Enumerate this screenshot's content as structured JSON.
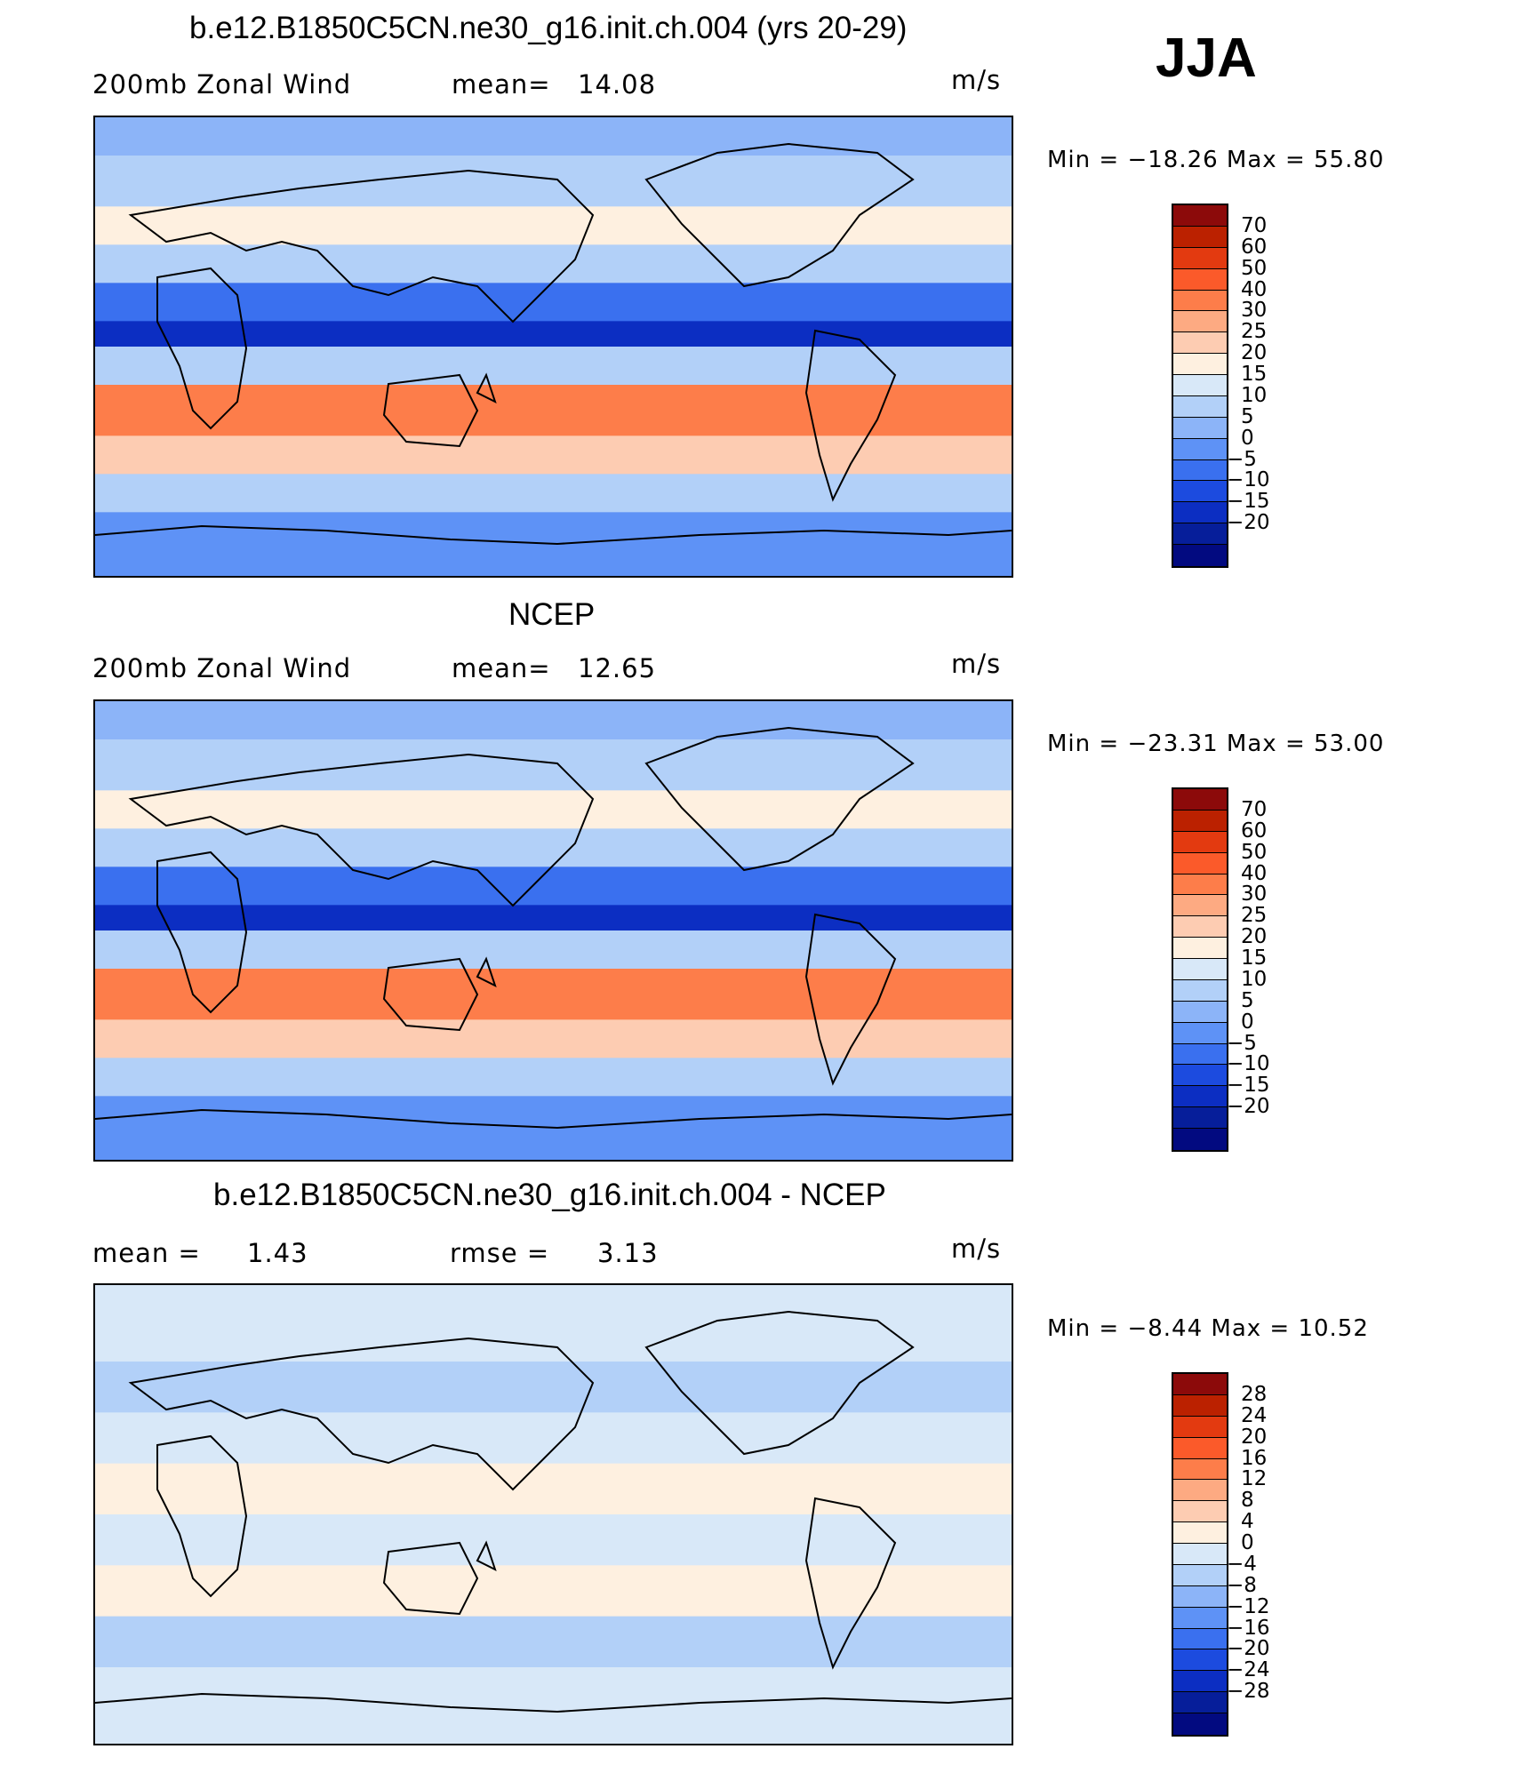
{
  "season": "JJA",
  "panels": [
    {
      "title": "b.e12.B1850C5CN.ne30_g16.init.ch.004 (yrs 20-29)",
      "left_text": "200mb  Zonal Wind",
      "stat1_label": "mean=",
      "stat1_value": "14.08",
      "stat2_label": "",
      "stat2_value": "",
      "units": "m/s",
      "minmax": "Min  =  −18.26  Max  =    55.80",
      "colorbar": {
        "colors": [
          "#8c0a0a",
          "#bb2100",
          "#e33a10",
          "#fb5a2a",
          "#fd7d4a",
          "#fdaa82",
          "#fdccb2",
          "#fef0e0",
          "#d8e8f8",
          "#b2d0f8",
          "#8cb4f8",
          "#5e92f6",
          "#3a70ef",
          "#1c4bdf",
          "#0c2ec2",
          "#061e9a",
          "#020a80"
        ],
        "labels": [
          "70",
          "60",
          "50",
          "40",
          "30",
          "25",
          "20",
          "15",
          "10",
          "5",
          "0",
          "−5",
          "−10",
          "−15",
          "−20"
        ]
      }
    },
    {
      "title": "NCEP",
      "left_text": "200mb  Zonal Wind",
      "stat1_label": "mean=",
      "stat1_value": "12.65",
      "stat2_label": "",
      "stat2_value": "",
      "units": "m/s",
      "minmax": "Min  =  −23.31  Max  =    53.00",
      "colorbar": {
        "colors": [
          "#8c0a0a",
          "#bb2100",
          "#e33a10",
          "#fb5a2a",
          "#fd7d4a",
          "#fdaa82",
          "#fdccb2",
          "#fef0e0",
          "#d8e8f8",
          "#b2d0f8",
          "#8cb4f8",
          "#5e92f6",
          "#3a70ef",
          "#1c4bdf",
          "#0c2ec2",
          "#061e9a",
          "#020a80"
        ],
        "labels": [
          "70",
          "60",
          "50",
          "40",
          "30",
          "25",
          "20",
          "15",
          "10",
          "5",
          "0",
          "−5",
          "−10",
          "−15",
          "−20"
        ]
      }
    },
    {
      "title": "b.e12.B1850C5CN.ne30_g16.init.ch.004 - NCEP",
      "left_text": "mean  =",
      "stat1_label": "",
      "stat1_value": "1.43",
      "stat2_label": "rmse  =",
      "stat2_value": "3.13",
      "units": "m/s",
      "minmax": "Min  =    −8.44  Max  =    10.52",
      "colorbar": {
        "colors": [
          "#8c0a0a",
          "#bb2100",
          "#e33a10",
          "#fb5a2a",
          "#fd7d4a",
          "#fdaa82",
          "#fdccb2",
          "#fef0e0",
          "#d8e8f8",
          "#b2d0f8",
          "#8cb4f8",
          "#5e92f6",
          "#3a70ef",
          "#1c4bdf",
          "#0c2ec2",
          "#061e9a",
          "#020a80"
        ],
        "labels": [
          "28",
          "24",
          "20",
          "16",
          "12",
          "8",
          "4",
          "0",
          "−4",
          "−8",
          "−12",
          "−16",
          "−20",
          "−24",
          "−28"
        ]
      }
    }
  ],
  "chart_data": [
    {
      "type": "heatmap",
      "title": "b.e12.B1850C5CN.ne30_g16.init.ch.004 (yrs 20-29)",
      "variable": "200mb  Zonal Wind",
      "units": "m/s",
      "mean": 14.08,
      "min": -18.26,
      "max": 55.8,
      "contour_levels": [
        -20,
        -15,
        -10,
        -5,
        0,
        5,
        10,
        15,
        20,
        25,
        30,
        40,
        50,
        60,
        70
      ],
      "zonal_bands": [
        {
          "lat_range": [
            75,
            90
          ],
          "value": 5
        },
        {
          "lat_range": [
            55,
            75
          ],
          "value": 10
        },
        {
          "lat_range": [
            40,
            55
          ],
          "value": 20
        },
        {
          "lat_range": [
            25,
            40
          ],
          "value": 10
        },
        {
          "lat_range": [
            10,
            25
          ],
          "value": -5
        },
        {
          "lat_range": [
            0,
            10
          ],
          "value": -12
        },
        {
          "lat_range": [
            -15,
            0
          ],
          "value": 10
        },
        {
          "lat_range": [
            -35,
            -15
          ],
          "value": 40
        },
        {
          "lat_range": [
            -50,
            -35
          ],
          "value": 25
        },
        {
          "lat_range": [
            -65,
            -50
          ],
          "value": 10
        },
        {
          "lat_range": [
            -90,
            -65
          ],
          "value": 0
        }
      ]
    },
    {
      "type": "heatmap",
      "title": "NCEP",
      "variable": "200mb  Zonal Wind",
      "units": "m/s",
      "mean": 12.65,
      "min": -23.31,
      "max": 53.0,
      "contour_levels": [
        -20,
        -15,
        -10,
        -5,
        0,
        5,
        10,
        15,
        20,
        25,
        30,
        40,
        50,
        60,
        70
      ],
      "zonal_bands": [
        {
          "lat_range": [
            75,
            90
          ],
          "value": 5
        },
        {
          "lat_range": [
            55,
            75
          ],
          "value": 10
        },
        {
          "lat_range": [
            40,
            55
          ],
          "value": 20
        },
        {
          "lat_range": [
            25,
            40
          ],
          "value": 10
        },
        {
          "lat_range": [
            10,
            25
          ],
          "value": -5
        },
        {
          "lat_range": [
            0,
            10
          ],
          "value": -15
        },
        {
          "lat_range": [
            -15,
            0
          ],
          "value": 10
        },
        {
          "lat_range": [
            -35,
            -15
          ],
          "value": 40
        },
        {
          "lat_range": [
            -50,
            -35
          ],
          "value": 25
        },
        {
          "lat_range": [
            -65,
            -50
          ],
          "value": 10
        },
        {
          "lat_range": [
            -90,
            -65
          ],
          "value": 0
        }
      ]
    },
    {
      "type": "heatmap",
      "title": "b.e12.B1850C5CN.ne30_g16.init.ch.004 - NCEP",
      "units": "m/s",
      "mean": 1.43,
      "rmse": 3.13,
      "min": -8.44,
      "max": 10.52,
      "contour_levels": [
        -28,
        -24,
        -20,
        -16,
        -12,
        -8,
        -4,
        0,
        4,
        8,
        12,
        16,
        20,
        24,
        28
      ],
      "zonal_bands": [
        {
          "lat_range": [
            60,
            90
          ],
          "value": 2
        },
        {
          "lat_range": [
            40,
            60
          ],
          "value": -2
        },
        {
          "lat_range": [
            20,
            40
          ],
          "value": 2
        },
        {
          "lat_range": [
            0,
            20
          ],
          "value": 4
        },
        {
          "lat_range": [
            -20,
            0
          ],
          "value": 2
        },
        {
          "lat_range": [
            -40,
            -20
          ],
          "value": 4
        },
        {
          "lat_range": [
            -60,
            -40
          ],
          "value": -2
        },
        {
          "lat_range": [
            -90,
            -60
          ],
          "value": 2
        }
      ]
    }
  ]
}
